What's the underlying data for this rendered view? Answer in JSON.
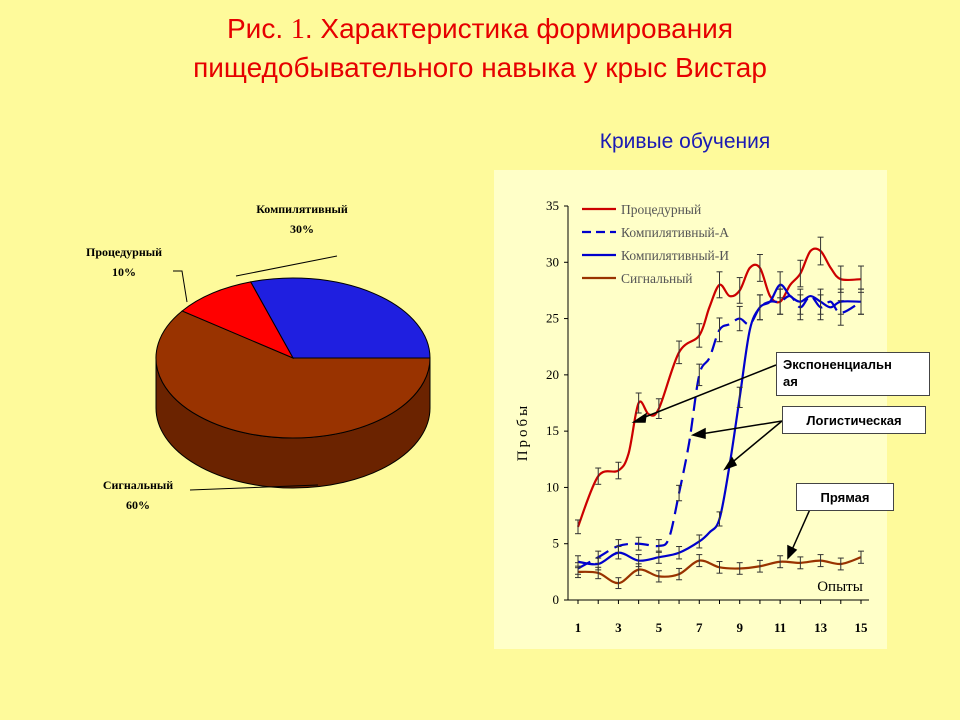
{
  "title": {
    "prefix": "Рис. ",
    "number": "1",
    "line1_rest": ". Характеристика формирования",
    "line2": "пищедобывательного навыка у крыс Вистар"
  },
  "chart_data": [
    {
      "type": "pie",
      "slices": [
        {
          "name": "Компилятивный",
          "value": 30,
          "label_name": "Компилятивный",
          "label_pct": "30%",
          "color": "#1f1fe0",
          "side_color": "#0b0b7a"
        },
        {
          "name": "Сигнальный",
          "value": 60,
          "label_name": "Сигнальный",
          "label_pct": "60%",
          "color": "#993300",
          "side_color": "#6b2300"
        },
        {
          "name": "Процедурный",
          "value": 10,
          "label_name": "Процедурный",
          "label_pct": "10%",
          "color": "#ff0000",
          "side_color": "#a00000"
        }
      ]
    },
    {
      "type": "line",
      "title": "Кривые обучения",
      "ylabel": "Пробы",
      "xlabel": "Опыты",
      "ylim": [
        0,
        35
      ],
      "xlim": [
        1,
        15
      ],
      "yticks": [
        0,
        5,
        10,
        15,
        20,
        25,
        30,
        35
      ],
      "xticks": [
        1,
        3,
        5,
        7,
        9,
        11,
        13,
        15
      ],
      "legend_position": "top-left",
      "series": [
        {
          "name": "Процедурный",
          "color": "#cc0000",
          "dash": "none",
          "errors": true,
          "points": [
            [
              1,
              6.5
            ],
            [
              2,
              11
            ],
            [
              3,
              11.5
            ],
            [
              3.5,
              13
            ],
            [
              4,
              17.5
            ],
            [
              4.5,
              16.5
            ],
            [
              5,
              17
            ],
            [
              6,
              22
            ],
            [
              7,
              23.5
            ],
            [
              7.5,
              26
            ],
            [
              8,
              28
            ],
            [
              8.5,
              27
            ],
            [
              9,
              27.5
            ],
            [
              9.5,
              29.5
            ],
            [
              10,
              29.5
            ],
            [
              10.5,
              27
            ],
            [
              11,
              26.5
            ],
            [
              11.5,
              28
            ],
            [
              12,
              29
            ],
            [
              12.5,
              31
            ],
            [
              13,
              31
            ],
            [
              13.5,
              29.5
            ],
            [
              14,
              28.5
            ],
            [
              15,
              28.5
            ]
          ]
        },
        {
          "name": "Компилятивный-А",
          "color": "#0000cc",
          "dash": "14,7",
          "errors": true,
          "points": [
            [
              1,
              2.8
            ],
            [
              2,
              3.8
            ],
            [
              3,
              4.8
            ],
            [
              4,
              5
            ],
            [
              5,
              4.8
            ],
            [
              5.5,
              5.5
            ],
            [
              6,
              9.5
            ],
            [
              6.5,
              14
            ],
            [
              7,
              20
            ],
            [
              7.5,
              21.5
            ],
            [
              8,
              24
            ],
            [
              8.5,
              24.5
            ],
            [
              9,
              25
            ],
            [
              9.5,
              24.5
            ],
            [
              10,
              26
            ],
            [
              10.5,
              26.5
            ],
            [
              11,
              26.5
            ],
            [
              11.5,
              27
            ],
            [
              12,
              26
            ],
            [
              12.5,
              27
            ],
            [
              13,
              26
            ],
            [
              13.5,
              26.5
            ],
            [
              14,
              25.5
            ],
            [
              15,
              26.5
            ]
          ]
        },
        {
          "name": "Компилятивный-И",
          "color": "#0000cc",
          "dash": "none",
          "errors": true,
          "points": [
            [
              1,
              3.4
            ],
            [
              2,
              3.2
            ],
            [
              3,
              4.2
            ],
            [
              4,
              3.5
            ],
            [
              5,
              3.8
            ],
            [
              6,
              4.2
            ],
            [
              7,
              5.2
            ],
            [
              7.5,
              6
            ],
            [
              8,
              7.2
            ],
            [
              8.5,
              12
            ],
            [
              9,
              18
            ],
            [
              9.5,
              24
            ],
            [
              10,
              26
            ],
            [
              10.5,
              26.5
            ],
            [
              11,
              28
            ],
            [
              11.5,
              27
            ],
            [
              12,
              26.5
            ],
            [
              12.5,
              27
            ],
            [
              13,
              26.5
            ],
            [
              13.5,
              26
            ],
            [
              14,
              26.5
            ],
            [
              15,
              26.5
            ]
          ]
        },
        {
          "name": "Сигнальный",
          "color": "#993300",
          "dash": "none",
          "errors": true,
          "points": [
            [
              1,
              2.5
            ],
            [
              2,
              2.4
            ],
            [
              3,
              1.5
            ],
            [
              4,
              2.7
            ],
            [
              5,
              2.1
            ],
            [
              6,
              2.3
            ],
            [
              7,
              3.5
            ],
            [
              8,
              2.9
            ],
            [
              9,
              2.8
            ],
            [
              10,
              3
            ],
            [
              11,
              3.4
            ],
            [
              12,
              3.3
            ],
            [
              13,
              3.5
            ],
            [
              14,
              3.2
            ],
            [
              15,
              3.8
            ]
          ]
        }
      ],
      "annotations": [
        {
          "text": "Экспоненциальн ая",
          "lines": [
            "Экспоненциальн",
            "ая"
          ]
        },
        {
          "text": "Логистическая"
        },
        {
          "text": "Прямая"
        }
      ]
    }
  ]
}
